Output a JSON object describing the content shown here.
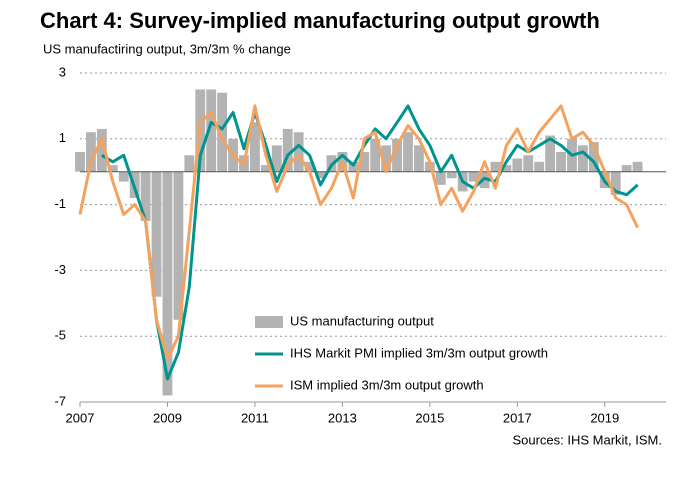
{
  "chart_data": {
    "type": "bar-line",
    "title": "Chart 4: Survey-implied manufacturing output growth",
    "subtitle": "US manufactiring output, 3m/3m  % change",
    "source": "Sources: IHS Markit, ISM.",
    "x": [
      2007,
      2007.25,
      2007.5,
      2007.75,
      2008,
      2008.25,
      2008.5,
      2008.75,
      2009,
      2009.25,
      2009.5,
      2009.75,
      2010,
      2010.25,
      2010.5,
      2010.75,
      2011,
      2011.25,
      2011.5,
      2011.75,
      2012,
      2012.25,
      2012.5,
      2012.75,
      2013,
      2013.25,
      2013.5,
      2013.75,
      2014,
      2014.25,
      2014.5,
      2014.75,
      2015,
      2015.25,
      2015.5,
      2015.75,
      2016,
      2016.25,
      2016.5,
      2016.75,
      2017,
      2017.25,
      2017.5,
      2017.75,
      2018,
      2018.25,
      2018.5,
      2018.75,
      2019,
      2019.25,
      2019.5,
      2019.75
    ],
    "series": [
      {
        "name": "US manufacturing output",
        "type": "bar",
        "color": "#b3b3b3",
        "values": [
          0.6,
          1.2,
          1.3,
          0.2,
          -0.3,
          -0.8,
          -1.5,
          -3.8,
          -6.8,
          -4.5,
          0.5,
          2.5,
          2.5,
          2.4,
          1.0,
          0.5,
          1.5,
          0.2,
          0.8,
          1.3,
          1.2,
          0.3,
          -0.2,
          0.5,
          0.6,
          0.3,
          0.6,
          1.0,
          0.8,
          1.0,
          1.2,
          0.8,
          0.3,
          -0.4,
          -0.2,
          -0.6,
          -0.3,
          -0.5,
          0.3,
          0.2,
          0.4,
          0.5,
          0.3,
          1.1,
          0.6,
          1.0,
          0.8,
          0.9,
          -0.5,
          -0.7,
          0.2,
          0.3
        ]
      },
      {
        "name": "IHS Markit PMI implied 3m/3m output growth",
        "type": "line",
        "color": "#00948e",
        "values": [
          null,
          null,
          0.5,
          0.3,
          0.5,
          -0.5,
          -1.5,
          -4.5,
          -6.3,
          -5.5,
          -3.5,
          0.5,
          1.5,
          1.3,
          1.8,
          0.7,
          1.8,
          0.8,
          -0.3,
          0.5,
          0.8,
          0.5,
          -0.4,
          0.2,
          0.5,
          0.2,
          0.8,
          1.3,
          1.0,
          1.5,
          2.0,
          1.3,
          0.8,
          0.0,
          0.5,
          -0.3,
          -0.5,
          -0.2,
          -0.3,
          0.3,
          0.8,
          0.6,
          0.8,
          1.0,
          0.8,
          0.5,
          0.6,
          0.3,
          -0.3,
          -0.6,
          -0.7,
          -0.4
        ]
      },
      {
        "name": "ISM implied 3m/3m output growth",
        "type": "line",
        "color": "#f4a25e",
        "values": [
          -1.3,
          0.3,
          1.0,
          -0.3,
          -1.3,
          -1.0,
          -1.5,
          -4.5,
          -5.7,
          -5.0,
          -1.8,
          1.5,
          1.8,
          1.0,
          0.5,
          0.2,
          2.0,
          0.5,
          -0.6,
          0.2,
          0.5,
          0.0,
          -1.0,
          -0.5,
          0.3,
          -0.8,
          1.0,
          1.2,
          0.0,
          0.8,
          1.4,
          1.0,
          0.3,
          -1.0,
          -0.5,
          -1.2,
          -0.6,
          0.3,
          -0.5,
          0.8,
          1.3,
          0.6,
          1.2,
          1.6,
          2.0,
          1.0,
          1.2,
          0.8,
          0.0,
          -0.8,
          -1.0,
          -1.7
        ]
      }
    ],
    "xlim": [
      2007,
      2020.4
    ],
    "xticks": [
      2007,
      2009,
      2011,
      2013,
      2015,
      2017,
      2019
    ],
    "ylim": [
      -7,
      3
    ],
    "yticks": [
      3,
      1,
      -1,
      -3,
      -5,
      -7
    ],
    "grid": true
  }
}
